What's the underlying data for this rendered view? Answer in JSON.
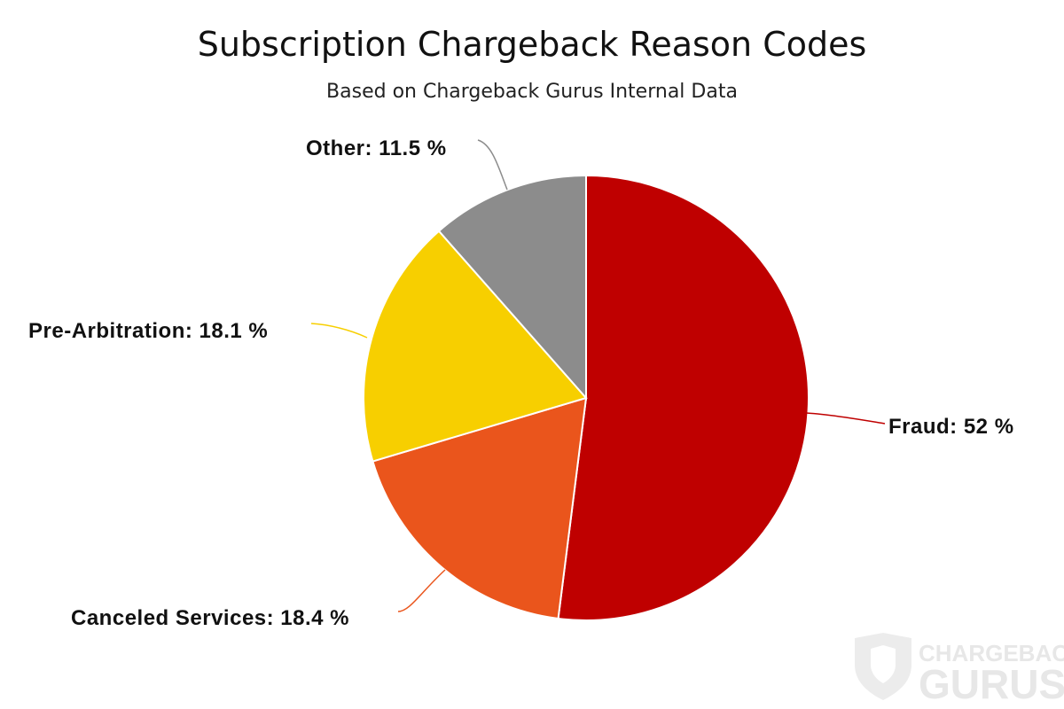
{
  "chart_data": {
    "type": "pie",
    "title": "Subscription Chargeback Reason Codes",
    "subtitle": "Based on Chargeback Gurus Internal Data",
    "slices": [
      {
        "label": "Fraud",
        "value": 52,
        "display": "Fraud: 52 %",
        "color": "#bf0000"
      },
      {
        "label": "Canceled Services",
        "value": 18.4,
        "display": "Canceled Services: 18.4 %",
        "color": "#ea551c"
      },
      {
        "label": "Pre-Arbitration",
        "value": 18.1,
        "display": "Pre-Arbitration: 18.1 %",
        "color": "#f7cf00"
      },
      {
        "label": "Other",
        "value": 11.5,
        "display": "Other: 11.5 %",
        "color": "#8c8c8c"
      }
    ],
    "start_angle_deg": 0,
    "direction": "clockwise",
    "legend": "none"
  },
  "watermark": {
    "line1": "CHARGEBACK",
    "line2": "GURUS"
  }
}
